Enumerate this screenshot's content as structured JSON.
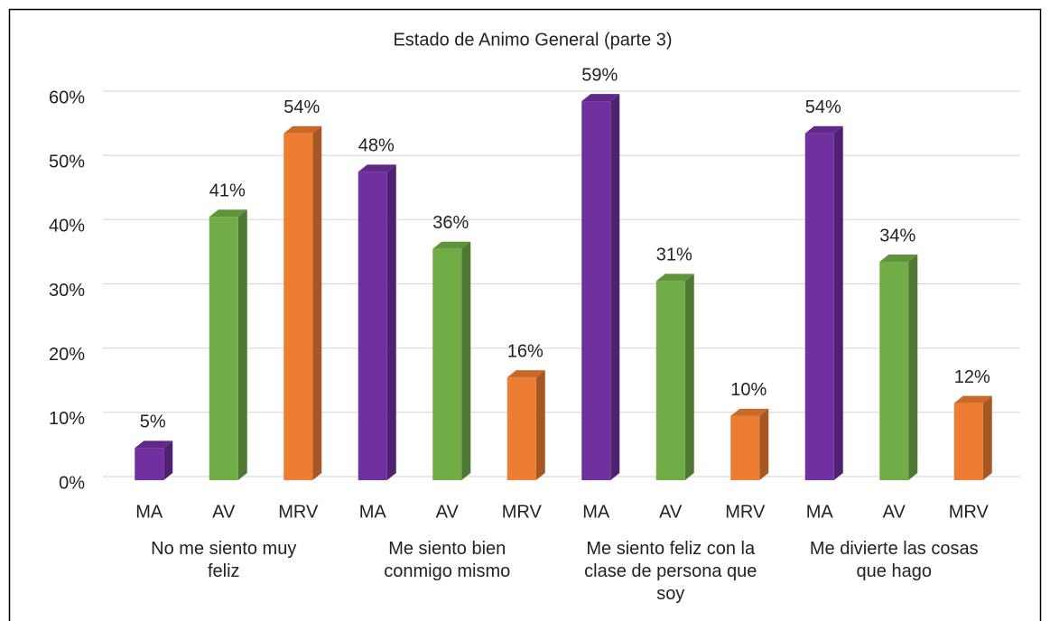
{
  "chart_data": {
    "type": "bar3d",
    "title": "Estado de Animo General (parte 3)",
    "groups": [
      "No me siento muy feliz",
      "Me siento bien conmigo mismo",
      "Me siento feliz con la clase de persona que soy",
      "Me divierte las cosas que hago"
    ],
    "series": [
      {
        "name": "MA",
        "color": "#7030a0",
        "values": [
          5,
          48,
          59,
          54
        ],
        "value_labels": [
          "5%",
          "48%",
          "59%",
          "54%"
        ]
      },
      {
        "name": "AV",
        "color": "#70ad47",
        "values": [
          41,
          36,
          31,
          34
        ],
        "value_labels": [
          "41%",
          "36%",
          "31%",
          "34%"
        ]
      },
      {
        "name": "MRV",
        "color": "#ed7d31",
        "values": [
          54,
          16,
          10,
          12
        ],
        "value_labels": [
          "54%",
          "16%",
          "10%",
          "12%"
        ]
      }
    ],
    "ylim": [
      0,
      60
    ],
    "yticks": [
      {
        "value": 0,
        "label": "0%"
      },
      {
        "value": 10,
        "label": "10%"
      },
      {
        "value": 20,
        "label": "20%"
      },
      {
        "value": 30,
        "label": "30%"
      },
      {
        "value": 40,
        "label": "40%"
      },
      {
        "value": 50,
        "label": "50%"
      },
      {
        "value": 60,
        "label": "60%"
      }
    ],
    "grid": true
  }
}
